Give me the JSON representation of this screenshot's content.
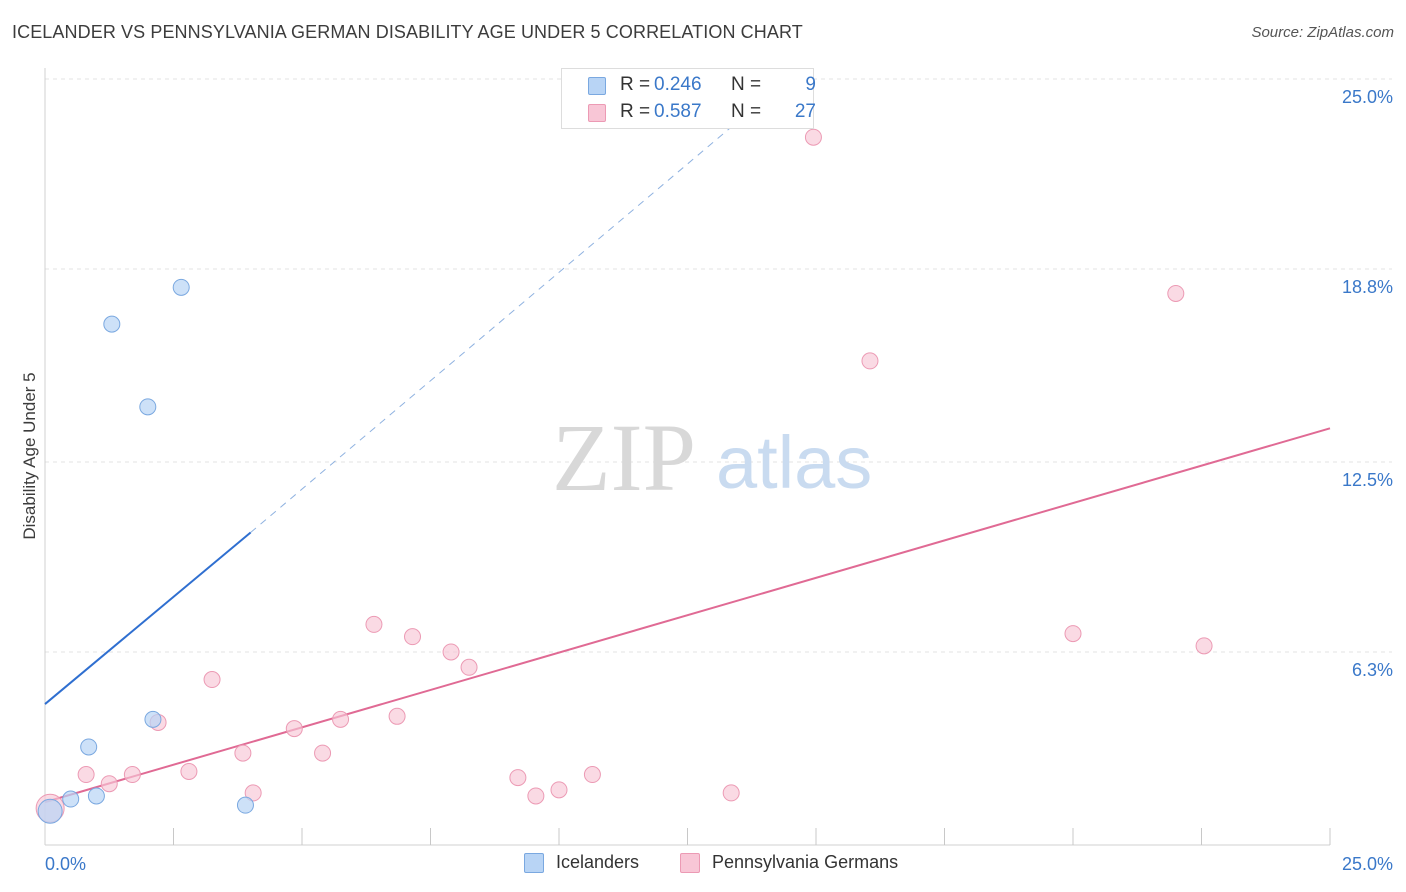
{
  "header": {
    "title": "ICELANDER VS PENNSYLVANIA GERMAN DISABILITY AGE UNDER 5 CORRELATION CHART",
    "source": "Source: ZipAtlas.com"
  },
  "watermark": {
    "zip": "ZIP",
    "atlas": "atlas"
  },
  "legend": {
    "rows": [
      {
        "r_label": "R =",
        "r_value": "0.246",
        "n_label": "N =",
        "n_value": "9"
      },
      {
        "r_label": "R =",
        "r_value": "0.587",
        "n_label": "N =",
        "n_value": "27"
      }
    ],
    "bottom": [
      "Icelanders",
      "Pennsylvania Germans"
    ]
  },
  "colors": {
    "icelander_fill": "#b8d4f5",
    "icelander_stroke": "#7aa8e0",
    "icelander_line": "#2f6fd0",
    "pa_fill": "#f8c6d6",
    "pa_stroke": "#ec9ab4",
    "pa_line": "#e06a94",
    "axis_text": "#3a78c9",
    "grid": "#e3e3e3"
  },
  "chart_data": {
    "type": "scatter",
    "title": "ICELANDER VS PENNSYLVANIA GERMAN DISABILITY AGE UNDER 5 CORRELATION CHART",
    "xlabel": "",
    "ylabel": "Disability Age Under 5",
    "xlim": [
      0,
      25
    ],
    "ylim": [
      0,
      25
    ],
    "x_tick_labels": [
      {
        "value": 0,
        "label": "0.0%"
      },
      {
        "value": 25,
        "label": "25.0%"
      }
    ],
    "y_tick_labels": [
      {
        "value": 6.3,
        "label": "6.3%"
      },
      {
        "value": 12.5,
        "label": "12.5%"
      },
      {
        "value": 18.8,
        "label": "18.8%"
      },
      {
        "value": 25.0,
        "label": "25.0%"
      }
    ],
    "series": [
      {
        "name": "Icelanders",
        "R": 0.246,
        "N": 9,
        "points": [
          {
            "x": 0.1,
            "y": 1.1,
            "big": true
          },
          {
            "x": 0.5,
            "y": 1.5
          },
          {
            "x": 1.0,
            "y": 1.6
          },
          {
            "x": 0.85,
            "y": 3.2
          },
          {
            "x": 2.1,
            "y": 4.1
          },
          {
            "x": 3.9,
            "y": 1.3
          },
          {
            "x": 1.3,
            "y": 17.0
          },
          {
            "x": 2.0,
            "y": 14.3
          },
          {
            "x": 2.65,
            "y": 18.2
          }
        ],
        "trend_solid": {
          "x0": 0,
          "y0": 4.6,
          "x1": 4.0,
          "y1": 10.2
        },
        "trend_dashed": {
          "x0": 4.0,
          "y0": 10.2,
          "x1": 13.4,
          "y1": 23.5
        }
      },
      {
        "name": "Pennsylvania Germans",
        "R": 0.587,
        "N": 27,
        "points": [
          {
            "x": 0.1,
            "y": 1.2,
            "big": true
          },
          {
            "x": 0.8,
            "y": 2.3
          },
          {
            "x": 1.25,
            "y": 2.0
          },
          {
            "x": 1.7,
            "y": 2.3
          },
          {
            "x": 2.2,
            "y": 4.0
          },
          {
            "x": 2.8,
            "y": 2.4
          },
          {
            "x": 3.25,
            "y": 5.4
          },
          {
            "x": 3.85,
            "y": 3.0
          },
          {
            "x": 4.05,
            "y": 1.7
          },
          {
            "x": 4.85,
            "y": 3.8
          },
          {
            "x": 5.4,
            "y": 3.0
          },
          {
            "x": 5.75,
            "y": 4.1
          },
          {
            "x": 6.4,
            "y": 7.2
          },
          {
            "x": 6.85,
            "y": 4.2
          },
          {
            "x": 7.15,
            "y": 6.8
          },
          {
            "x": 7.9,
            "y": 6.3
          },
          {
            "x": 8.25,
            "y": 5.8
          },
          {
            "x": 9.2,
            "y": 2.2
          },
          {
            "x": 9.55,
            "y": 1.6
          },
          {
            "x": 10.0,
            "y": 1.8
          },
          {
            "x": 10.65,
            "y": 2.3
          },
          {
            "x": 13.35,
            "y": 1.7
          },
          {
            "x": 14.95,
            "y": 23.1
          },
          {
            "x": 16.05,
            "y": 15.8
          },
          {
            "x": 20.0,
            "y": 6.9
          },
          {
            "x": 22.0,
            "y": 18.0
          },
          {
            "x": 22.55,
            "y": 6.5
          }
        ],
        "trend_solid": {
          "x0": 0,
          "y0": 1.4,
          "x1": 25,
          "y1": 13.6
        }
      }
    ]
  }
}
